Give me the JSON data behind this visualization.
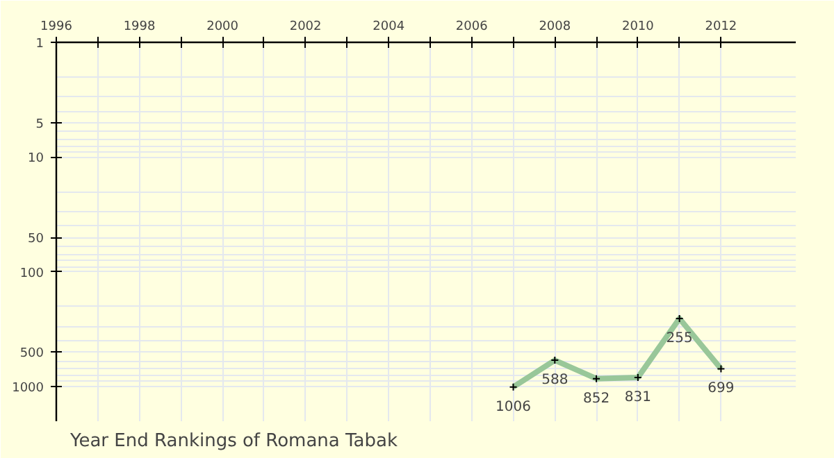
{
  "chart_data": {
    "type": "line",
    "title": "Year End Rankings of  Romana Tabak",
    "x": [
      2007,
      2008,
      2009,
      2010,
      2011,
      2012
    ],
    "series": [
      {
        "color": "#99c799",
        "values": [
          1006,
          588,
          852,
          831,
          255,
          699
        ]
      }
    ],
    "data_labels": true,
    "log": "y",
    "marker": "cross",
    "line_style": "solid",
    "grid": true,
    "xlim": [
      1996,
      2013.8
    ],
    "xticks": [
      1996,
      {
        "value": 1997,
        "label": null
      },
      1998,
      {
        "value": 1999,
        "label": null
      },
      2000,
      {
        "value": 2001,
        "label": null
      },
      2002,
      {
        "value": 2003,
        "label": null
      },
      2004,
      {
        "value": 2005,
        "label": null
      },
      2006,
      {
        "value": 2007,
        "label": null
      },
      2008,
      {
        "value": 2009,
        "label": null
      },
      2010,
      {
        "value": 2011,
        "label": null
      },
      2012
    ],
    "ylim": [
      2000,
      1
    ],
    "yticks": [
      1,
      5,
      10,
      50,
      100,
      500,
      1000
    ]
  }
}
